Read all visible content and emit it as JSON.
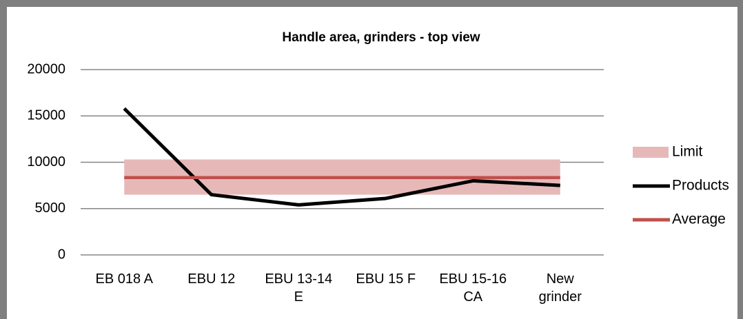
{
  "chart_data": {
    "type": "line",
    "title": "Handle area, grinders - top view",
    "categories": [
      "EB 018 A",
      "EBU 12",
      "EBU 13-14 E",
      "EBU 15 F",
      "EBU 15-16 CA",
      "New grinder"
    ],
    "series": [
      {
        "name": "Limit",
        "color": "#e6b9b8",
        "low": [
          6500,
          6500,
          6500,
          6500,
          6500,
          6500
        ],
        "high": [
          10300,
          10300,
          10300,
          10300,
          10300,
          10300
        ]
      },
      {
        "name": "Products",
        "color": "#000000",
        "values": [
          15800,
          6500,
          5400,
          6100,
          8000,
          7500
        ]
      },
      {
        "name": "Average",
        "color": "#c0504d",
        "values": [
          8350,
          8350,
          8350,
          8350,
          8350,
          8350
        ]
      }
    ],
    "ylim": [
      0,
      20000
    ],
    "yticks": [
      0,
      5000,
      10000,
      15000,
      20000
    ],
    "grid": true,
    "legend": "right"
  }
}
